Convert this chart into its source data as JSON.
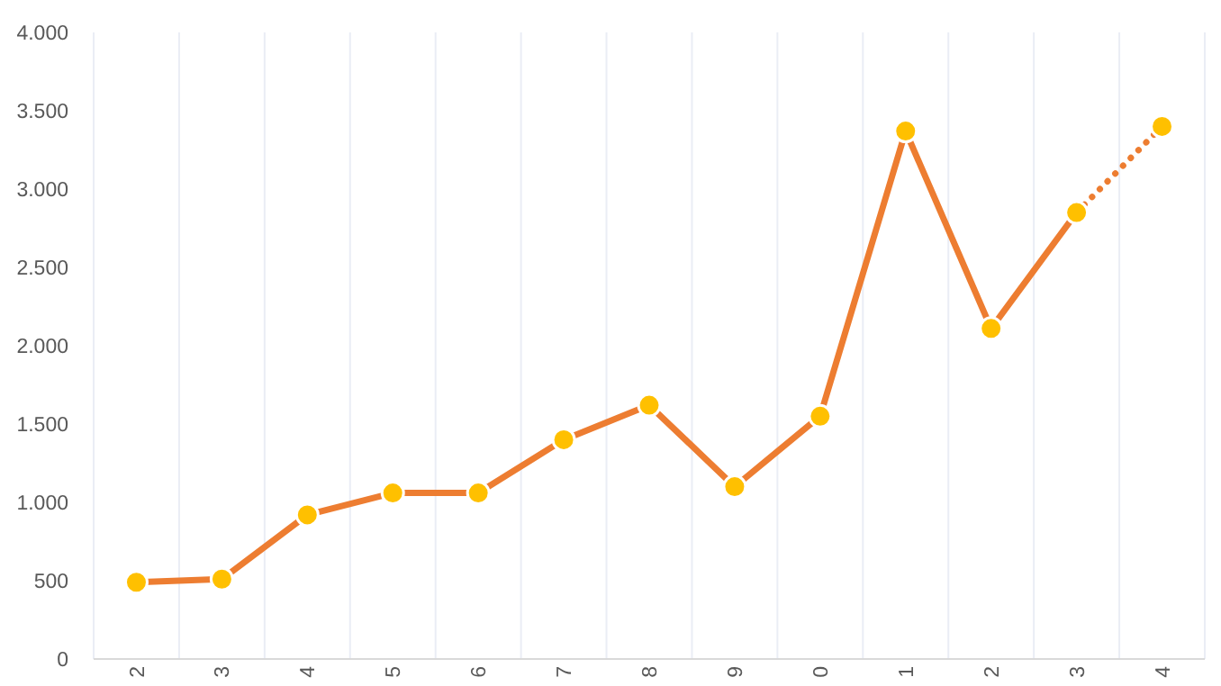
{
  "chart_data": {
    "type": "line",
    "categories": [
      "2",
      "3",
      "4",
      "5",
      "6",
      "7",
      "8",
      "9",
      "0",
      "1",
      "2",
      "3",
      "4"
    ],
    "ylim": [
      0,
      4000
    ],
    "yticks": [
      {
        "value": 0,
        "label": "0"
      },
      {
        "value": 500,
        "label": "500"
      },
      {
        "value": 1000,
        "label": "1.000"
      },
      {
        "value": 1500,
        "label": "1.500"
      },
      {
        "value": 2000,
        "label": "2.000"
      },
      {
        "value": 2500,
        "label": "2.500"
      },
      {
        "value": 3000,
        "label": "3.000"
      },
      {
        "value": 3500,
        "label": "3.500"
      },
      {
        "value": 4000,
        "label": "4.000"
      }
    ],
    "grid": "x",
    "series": [
      {
        "color": "#ed7d31",
        "line_style": "solid",
        "marker": "none",
        "values": [
          490,
          510,
          920,
          1060,
          1060,
          1400,
          1620,
          1100,
          1550,
          3370,
          2110,
          2850,
          null
        ]
      },
      {
        "color": "#ed7d31",
        "line_style": "dotted",
        "marker": "none",
        "values": [
          null,
          null,
          null,
          null,
          null,
          null,
          null,
          null,
          null,
          null,
          null,
          2850,
          3400
        ]
      },
      {
        "type": "scatter",
        "color": "#ffc000",
        "marker": "circle",
        "values": [
          490,
          510,
          920,
          1060,
          1060,
          1400,
          1620,
          1100,
          1550,
          3370,
          2110,
          2850,
          3400
        ]
      }
    ]
  }
}
